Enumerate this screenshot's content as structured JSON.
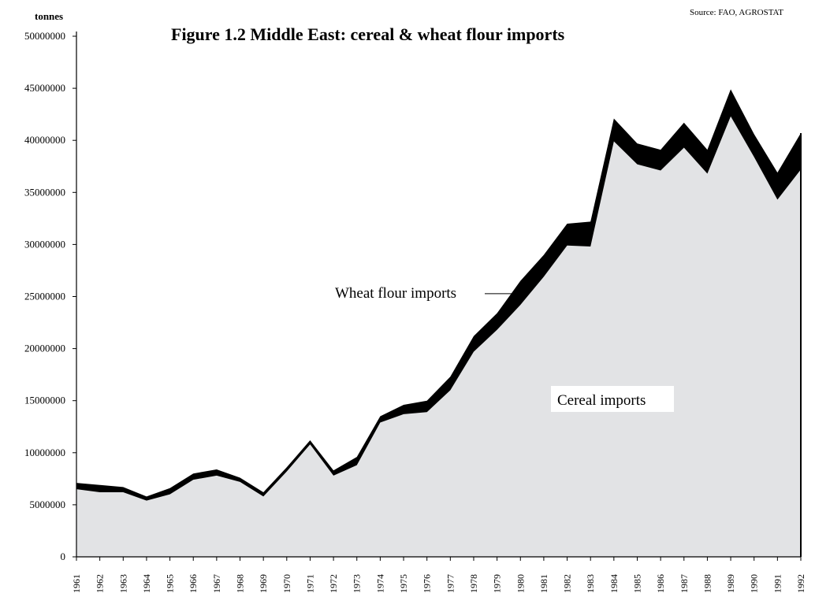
{
  "chart_data": {
    "type": "area",
    "title": "Figure 1.2  Middle East: cereal & wheat flour imports",
    "ylabel": "tonnes",
    "source": "Source: FAO, AGROSTAT",
    "ylim": [
      0,
      50000000
    ],
    "yticks": [
      0,
      5000000,
      10000000,
      15000000,
      20000000,
      25000000,
      30000000,
      35000000,
      40000000,
      45000000,
      50000000
    ],
    "ytick_labels": [
      "0",
      "5000000",
      "10000000",
      "15000000",
      "20000000",
      "25000000",
      "30000000",
      "35000000",
      "40000000",
      "45000000",
      "50000000"
    ],
    "x": [
      "1961",
      "1962",
      "1963",
      "1964",
      "1965",
      "1966",
      "1967",
      "1968",
      "1969",
      "1970",
      "1971",
      "1972",
      "1973",
      "1974",
      "1975",
      "1976",
      "1977",
      "1978",
      "1979",
      "1980",
      "1981",
      "1982",
      "1983",
      "1984",
      "1985",
      "1986",
      "1987",
      "1988",
      "1989",
      "1990",
      "1991",
      "1992"
    ],
    "stacked": true,
    "grid": false,
    "series": [
      {
        "name": "Cereal imports",
        "color": "#e2e3e5",
        "values": [
          6500000,
          6200000,
          6200000,
          5400000,
          6000000,
          7400000,
          7800000,
          7200000,
          5800000,
          8200000,
          10800000,
          7800000,
          8800000,
          12900000,
          13700000,
          13900000,
          16000000,
          19700000,
          21800000,
          24200000,
          26900000,
          29900000,
          29800000,
          39900000,
          37700000,
          37100000,
          39300000,
          36800000,
          42300000,
          38400000,
          34300000,
          37200000
        ]
      },
      {
        "name": "Wheat flour imports",
        "color": "#000000",
        "values": [
          600000,
          700000,
          500000,
          400000,
          600000,
          600000,
          600000,
          400000,
          400000,
          400000,
          400000,
          500000,
          800000,
          600000,
          900000,
          1100000,
          1300000,
          1500000,
          1600000,
          2300000,
          2100000,
          2100000,
          2400000,
          2200000,
          2000000,
          2000000,
          2400000,
          2300000,
          2600000,
          2200000,
          2600000,
          3500000
        ]
      }
    ],
    "annotations": [
      {
        "text": "Wheat flour imports",
        "points_to": "Wheat flour imports",
        "x": "1980"
      },
      {
        "text": "Cereal imports",
        "in_area": "Cereal imports"
      }
    ]
  }
}
